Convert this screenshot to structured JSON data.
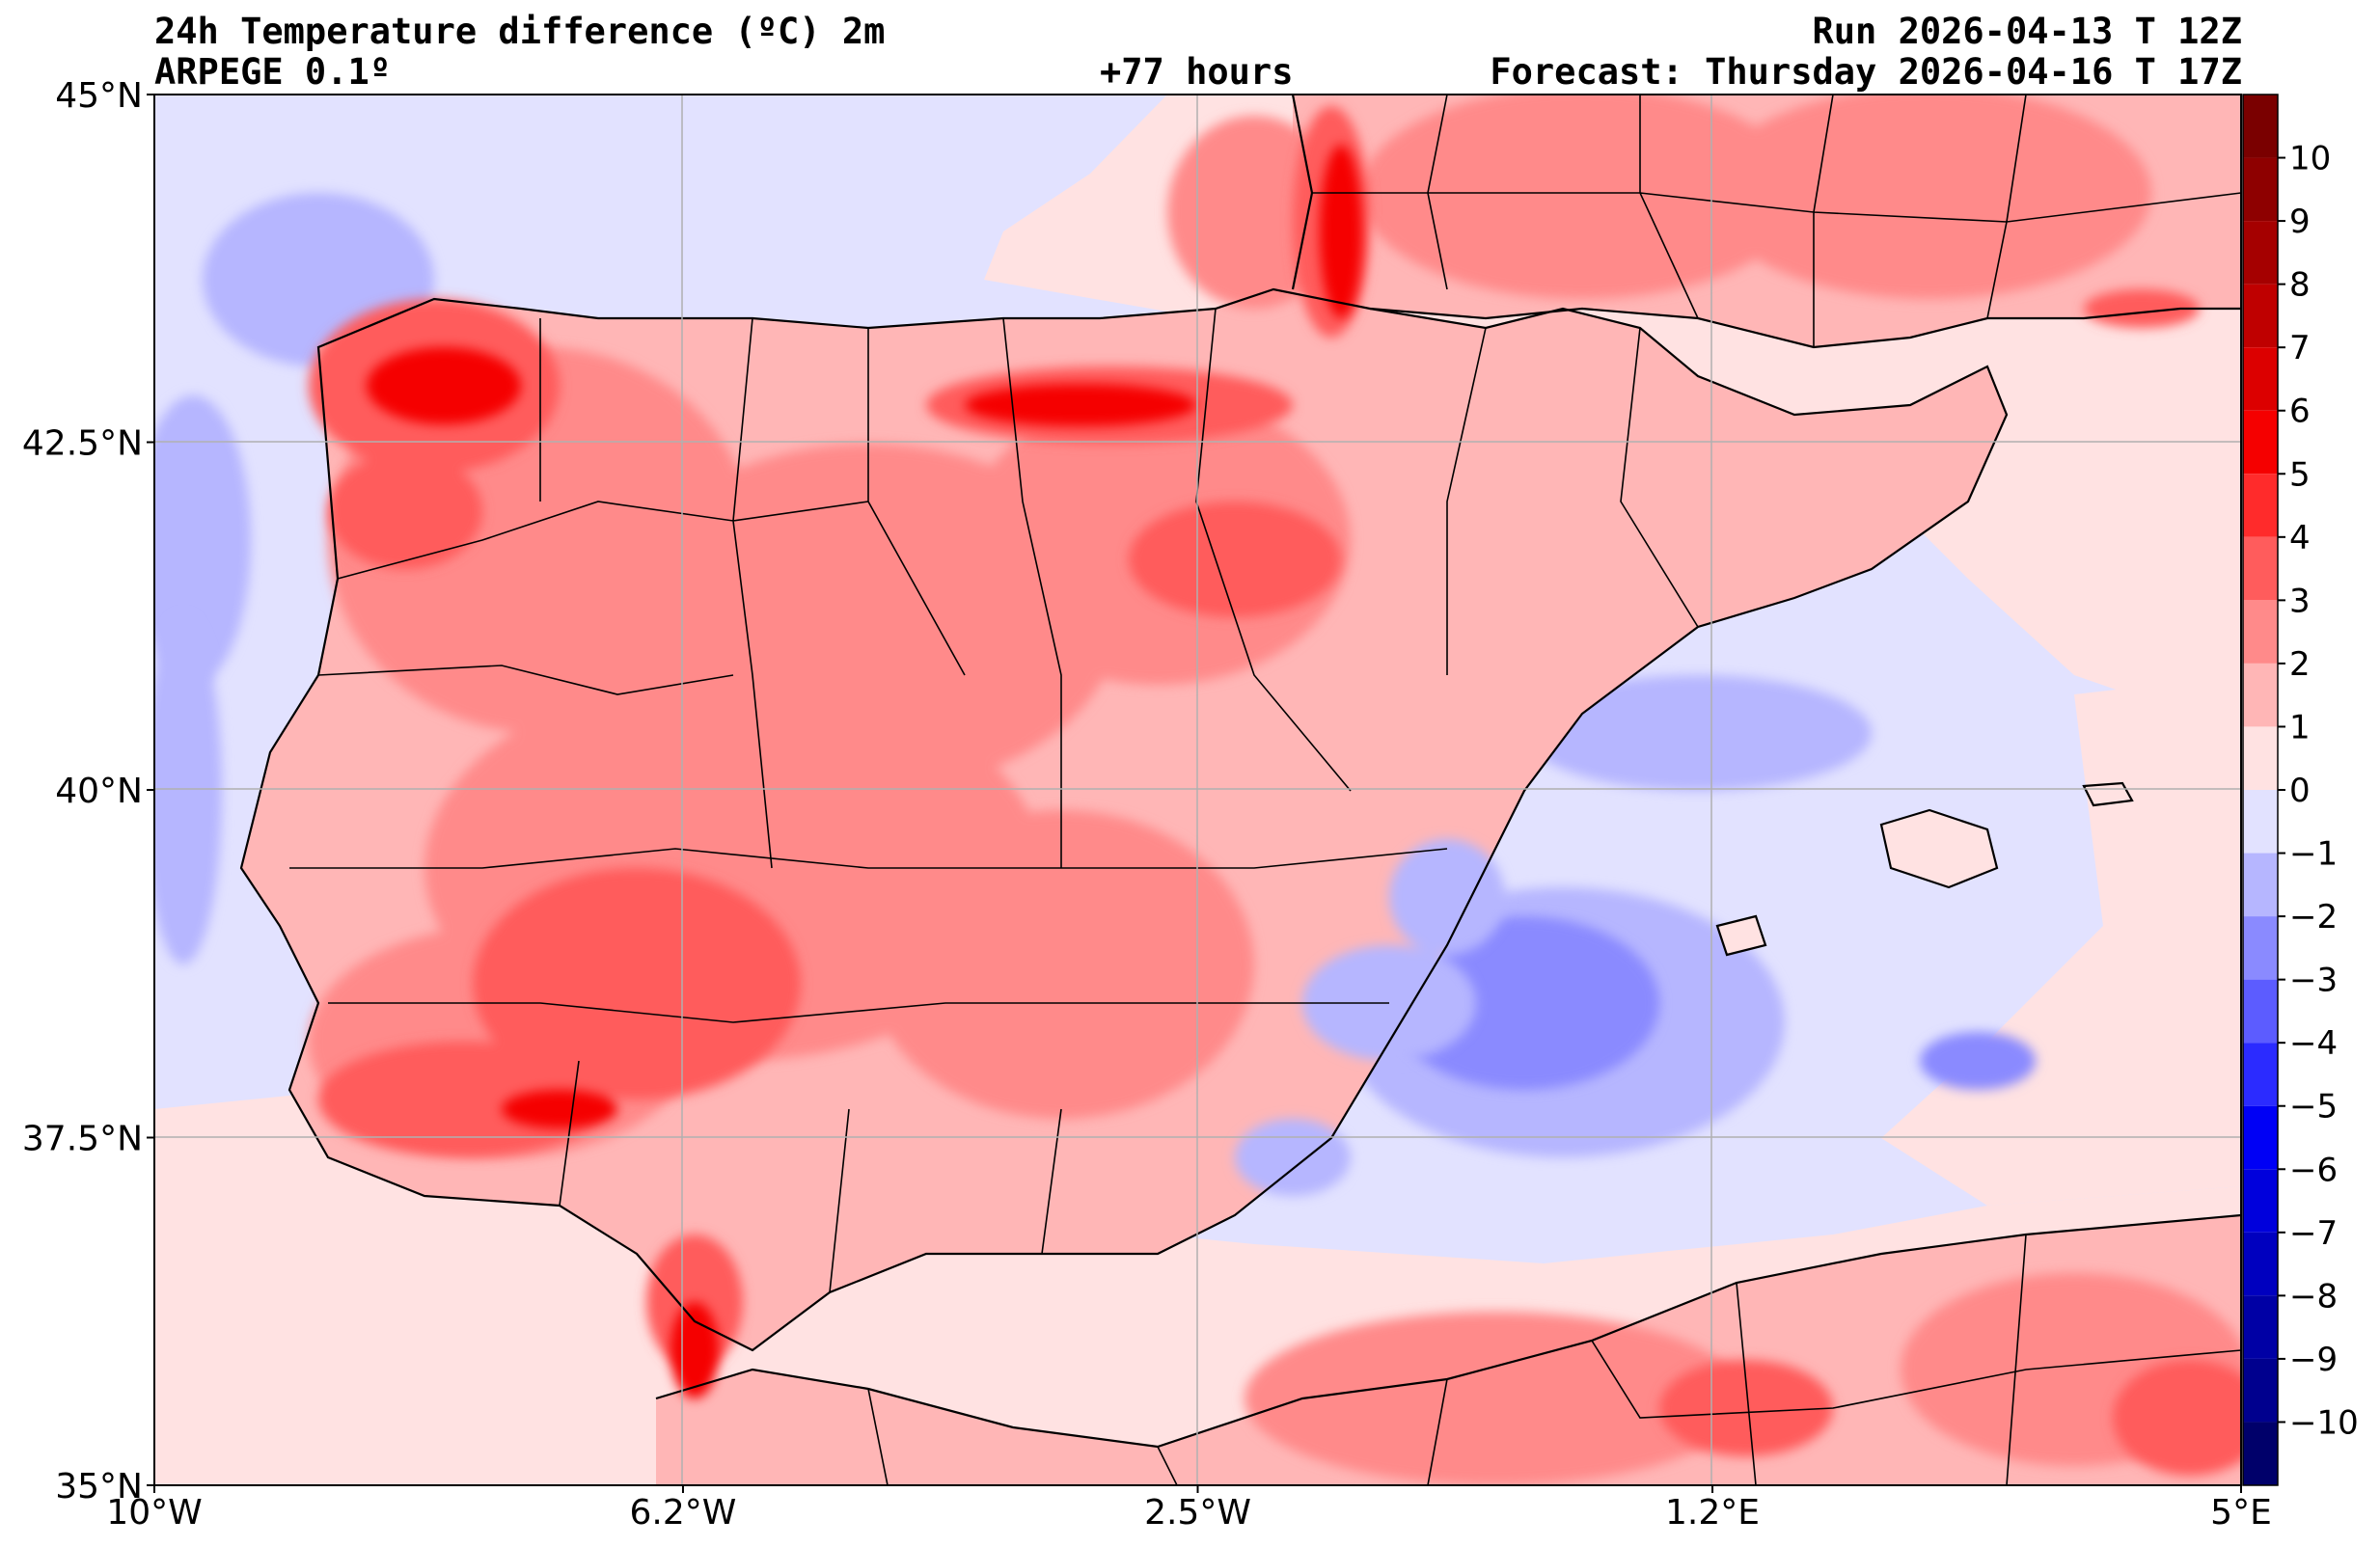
{
  "header": {
    "title_left": "24h Temperature difference (ºC) 2m",
    "model": "ARPEGE 0.1º",
    "lead_time": "+77 hours",
    "run": "Run 2026-04-13 T 12Z",
    "forecast": "Forecast: Thursday 2026-04-16 T 17Z"
  },
  "chart_data": {
    "type": "heatmap",
    "variable": "24h 2 m temperature difference (ºC)",
    "lon_range": [
      -10,
      5
    ],
    "lat_range": [
      35,
      45
    ],
    "x_ticks": [
      {
        "value": -10,
        "label": "10°W"
      },
      {
        "value": -6.2,
        "label": "6.2°W"
      },
      {
        "value": -2.5,
        "label": "2.5°W"
      },
      {
        "value": 1.2,
        "label": "1.2°E"
      },
      {
        "value": 5,
        "label": "5°E"
      }
    ],
    "y_ticks": [
      {
        "value": 45,
        "label": "45°N"
      },
      {
        "value": 42.5,
        "label": "42.5°N"
      },
      {
        "value": 40,
        "label": "40°N"
      },
      {
        "value": 37.5,
        "label": "37.5°N"
      },
      {
        "value": 35,
        "label": "35°N"
      }
    ],
    "colorbar": {
      "range": [
        -11,
        11
      ],
      "labels": [
        {
          "value": 10,
          "label": "10"
        },
        {
          "value": 9,
          "label": "9"
        },
        {
          "value": 8,
          "label": "8"
        },
        {
          "value": 7,
          "label": "7"
        },
        {
          "value": 6,
          "label": "6"
        },
        {
          "value": 5,
          "label": "5"
        },
        {
          "value": 4,
          "label": "4"
        },
        {
          "value": 3,
          "label": "3"
        },
        {
          "value": 2,
          "label": "2"
        },
        {
          "value": 1,
          "label": "1"
        },
        {
          "value": 0,
          "label": "0"
        },
        {
          "value": -1,
          "label": "−1"
        },
        {
          "value": -2,
          "label": "−2"
        },
        {
          "value": -3,
          "label": "−3"
        },
        {
          "value": -4,
          "label": "−4"
        },
        {
          "value": -5,
          "label": "−5"
        },
        {
          "value": -6,
          "label": "−6"
        },
        {
          "value": -7,
          "label": "−7"
        },
        {
          "value": -8,
          "label": "−8"
        },
        {
          "value": -9,
          "label": "−9"
        },
        {
          "value": -10,
          "label": "−10"
        }
      ],
      "bands": [
        {
          "from": 10,
          "to": 11,
          "color": "#7a0000"
        },
        {
          "from": 9,
          "to": 10,
          "color": "#8e0000"
        },
        {
          "from": 8,
          "to": 9,
          "color": "#a50000"
        },
        {
          "from": 7,
          "to": 8,
          "color": "#bf0000"
        },
        {
          "from": 6,
          "to": 7,
          "color": "#dc0000"
        },
        {
          "from": 5,
          "to": 6,
          "color": "#f50000"
        },
        {
          "from": 4,
          "to": 5,
          "color": "#ff2b2b"
        },
        {
          "from": 3,
          "to": 4,
          "color": "#ff5c5c"
        },
        {
          "from": 2,
          "to": 3,
          "color": "#ff8a8a"
        },
        {
          "from": 1,
          "to": 2,
          "color": "#ffb6b6"
        },
        {
          "from": 0,
          "to": 1,
          "color": "#ffe2e2"
        },
        {
          "from": -1,
          "to": 0,
          "color": "#e2e2ff"
        },
        {
          "from": -2,
          "to": -1,
          "color": "#b6b6ff"
        },
        {
          "from": -3,
          "to": -2,
          "color": "#8a8aff"
        },
        {
          "from": -4,
          "to": -3,
          "color": "#5c5cff"
        },
        {
          "from": -5,
          "to": -4,
          "color": "#2b2bff"
        },
        {
          "from": -6,
          "to": -5,
          "color": "#0000f5"
        },
        {
          "from": -7,
          "to": -6,
          "color": "#0000dc"
        },
        {
          "from": -8,
          "to": -7,
          "color": "#0000bf"
        },
        {
          "from": -9,
          "to": -8,
          "color": "#0000a5"
        },
        {
          "from": -10,
          "to": -9,
          "color": "#00008e"
        },
        {
          "from": -11,
          "to": -10,
          "color": "#00006a"
        }
      ]
    }
  }
}
